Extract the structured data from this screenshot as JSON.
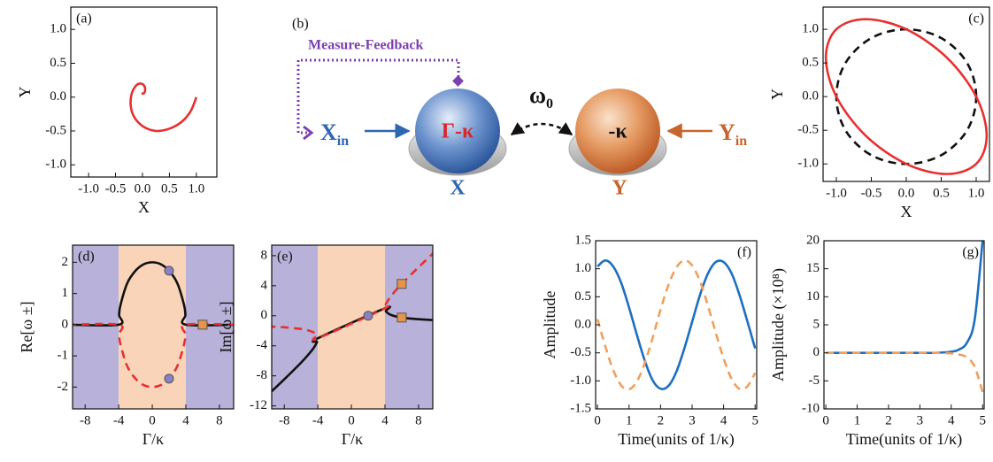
{
  "chart_data": [
    {
      "type": "line",
      "label": "(a)",
      "label_corner": "left",
      "x_label": "X",
      "y_label": "Y",
      "xlim": [
        -1.33,
        1.38
      ],
      "ylim": [
        -1.18,
        1.33
      ],
      "xticks": [
        {
          "value": -1,
          "label": "-1.0"
        },
        -0.5,
        {
          "value": 0,
          "label": "0.0"
        },
        0.5,
        {
          "value": 1,
          "label": "1.0"
        }
      ],
      "yticks": [
        {
          "value": -1,
          "label": "-1.0"
        },
        -0.5,
        {
          "value": 0,
          "label": "0.0"
        },
        0.5,
        {
          "value": 1,
          "label": "1.0"
        }
      ],
      "series": [
        {
          "color": "#e8302f",
          "style": "solid",
          "closed": false,
          "x": [
            1,
            0.9,
            0.75,
            0.55,
            0.3,
            0.1,
            -0.07,
            -0.18,
            -0.22,
            -0.2,
            -0.13,
            -0.05,
            0.02,
            0.05,
            0.03,
            -0.02
          ],
          "values": [
            0,
            -0.2,
            -0.35,
            -0.45,
            -0.5,
            -0.47,
            -0.38,
            -0.25,
            -0.1,
            0.05,
            0.16,
            0.2,
            0.18,
            0.12,
            0.06,
            0.05
          ]
        }
      ]
    },
    {
      "type": "line",
      "label": "(c)",
      "label_corner": "right",
      "x_label": "X",
      "y_label": "Y",
      "xlim": [
        -1.19,
        1.19
      ],
      "ylim": [
        -1.26,
        1.33
      ],
      "xticks": [
        {
          "value": -1,
          "label": "-1.0"
        },
        -0.5,
        {
          "value": 0,
          "label": "0.0"
        },
        0.5,
        {
          "value": 1,
          "label": "1.0"
        }
      ],
      "yticks": [
        {
          "value": -1,
          "label": "-1.0"
        },
        -0.5,
        {
          "value": 0,
          "label": "0.0"
        },
        0.5,
        {
          "value": 1,
          "label": "1.0"
        }
      ],
      "series": [
        {
          "color": "#111111",
          "style": "dashed",
          "closed": true,
          "x": [
            1,
            0.87,
            0.5,
            0,
            -0.5,
            -0.87,
            -1,
            -0.87,
            -0.5,
            0,
            0.5,
            0.87
          ],
          "values": [
            0,
            0.5,
            0.87,
            1,
            0.87,
            0.5,
            0,
            -0.5,
            -0.87,
            -1,
            -0.87,
            -0.5
          ]
        },
        {
          "color": "#e8302f",
          "style": "solid",
          "closed": true,
          "x": [
            1.15,
            1,
            0.58,
            0,
            -0.58,
            -1,
            -1.15,
            -1,
            -0.58,
            0,
            0.58,
            1
          ],
          "values": [
            -0.58,
            -1,
            -1.15,
            -1,
            -0.58,
            0,
            0.58,
            1,
            1.15,
            1,
            0.58,
            0
          ]
        }
      ]
    },
    {
      "type": "line",
      "label": "(d)",
      "label_corner": "left",
      "x_label": "Γ/κ",
      "y_label": "Re[ω ±]",
      "xlim": [
        -9.5,
        9.7
      ],
      "ylim": [
        -2.7,
        2.55
      ],
      "xticks": [
        -8,
        -4,
        0,
        4,
        8
      ],
      "yticks": [
        -2,
        -1,
        0,
        1,
        2
      ],
      "regions": [
        {
          "from": -10,
          "to": -4,
          "color": "#b8b1d9"
        },
        {
          "from": -4,
          "to": 4,
          "color": "#f9d4b8"
        },
        {
          "from": 4,
          "to": 10,
          "color": "#b8b1d9"
        }
      ],
      "series": [
        {
          "color": "#111111",
          "style": "solid",
          "closed": false,
          "x": [
            -10,
            -4,
            -3.95,
            -3.8,
            -3,
            -2,
            -1,
            0,
            1,
            2,
            3,
            3.8,
            3.95,
            4,
            10
          ],
          "values": [
            0,
            0,
            0.31,
            0.62,
            1.32,
            1.73,
            1.94,
            2,
            1.94,
            1.73,
            1.32,
            0.62,
            0.31,
            0,
            0
          ]
        },
        {
          "color": "#e8302f",
          "style": "dashed",
          "closed": false,
          "x": [
            -10,
            -4,
            -3.95,
            -3.8,
            -3,
            -2,
            -1,
            0,
            1,
            2,
            3,
            3.8,
            3.95,
            4,
            10
          ],
          "values": [
            0,
            0,
            -0.31,
            -0.62,
            -1.32,
            -1.73,
            -1.94,
            -2,
            -1.94,
            -1.73,
            -1.32,
            -0.62,
            -0.31,
            0,
            0
          ]
        }
      ],
      "markers": [
        {
          "x": 2,
          "y": 1.73,
          "shape": "circle",
          "color": "#8c80c4"
        },
        {
          "x": 2,
          "y": -1.73,
          "shape": "circle",
          "color": "#8c80c4"
        },
        {
          "x": 6,
          "y": 0,
          "shape": "square",
          "color": "#e8934a"
        }
      ]
    },
    {
      "type": "line",
      "label": "(e)",
      "label_corner": "left",
      "x_label": "Γ/κ",
      "y_label": "Im[ω ±]",
      "xlim": [
        -9.5,
        9.7
      ],
      "ylim": [
        -12.4,
        9.4
      ],
      "xticks": [
        -8,
        -4,
        0,
        4,
        8
      ],
      "yticks": [
        -12,
        -8,
        -4,
        0,
        4,
        8
      ],
      "regions": [
        {
          "from": -10,
          "to": -4,
          "color": "#b8b1d9"
        },
        {
          "from": -4,
          "to": 4,
          "color": "#f9d4b8"
        },
        {
          "from": 4,
          "to": 10,
          "color": "#b8b1d9"
        }
      ],
      "series": [
        {
          "color": "#111111",
          "style": "solid",
          "closed": false,
          "x": [
            -10,
            -8,
            -6,
            -5,
            -4.5,
            -4.1,
            -4,
            4,
            4.1,
            4.5,
            5,
            6,
            8,
            10
          ],
          "values": [
            -10.58,
            -8.46,
            -6.24,
            -5,
            -4.28,
            -3.5,
            -3,
            1,
            0.6,
            0.22,
            0,
            -0.24,
            -0.46,
            -0.58
          ]
        },
        {
          "color": "#e8302f",
          "style": "dashed",
          "closed": false,
          "x": [
            -10,
            -8,
            -6,
            -5,
            -4.5,
            -4.1,
            -4,
            4,
            4.1,
            4.5,
            5,
            6,
            8,
            10
          ],
          "values": [
            -1.42,
            -1.54,
            -1.76,
            -2,
            -2.22,
            -2.6,
            -3,
            1,
            1.5,
            2.28,
            3,
            4.24,
            6.46,
            8.58
          ]
        }
      ],
      "markers": [
        {
          "x": 2,
          "y": 0,
          "shape": "circle",
          "color": "#8c80c4"
        },
        {
          "x": 6,
          "y": 4.24,
          "shape": "square",
          "color": "#e8934a"
        },
        {
          "x": 6,
          "y": -0.24,
          "shape": "square",
          "color": "#e8934a"
        }
      ]
    },
    {
      "type": "line",
      "label": "(f)",
      "label_corner": "right",
      "x_label": "Time(units of 1/κ)",
      "y_label": "Amplitude",
      "xlim": [
        -0.06,
        5.05
      ],
      "ylim": [
        -1.5,
        1.5
      ],
      "xticks": [
        0,
        1,
        2,
        3,
        4,
        5
      ],
      "yticks": [
        -1.5,
        {
          "value": -1,
          "label": "-1.0"
        },
        -0.5,
        {
          "value": 0,
          "label": "0.0"
        },
        0.5,
        {
          "value": 1,
          "label": "1.0"
        },
        1.5
      ],
      "series": [
        {
          "color": "#1f6fc0",
          "style": "solid",
          "closed": false,
          "x": [
            0,
            0.25,
            0.5,
            0.75,
            1,
            1.25,
            1.5,
            1.75,
            2,
            2.25,
            2.5,
            2.75,
            3,
            3.25,
            3.5,
            3.75,
            4,
            4.25,
            4.5,
            4.75,
            5
          ],
          "values": [
            1.04,
            1.15,
            1.04,
            0.75,
            0.31,
            -0.18,
            -0.64,
            -0.99,
            -1.14,
            -1.09,
            -0.84,
            -0.43,
            0.05,
            0.53,
            0.91,
            1.12,
            1.12,
            0.92,
            0.54,
            0.07,
            -0.42
          ]
        },
        {
          "color": "#f0a05a",
          "style": "dashed",
          "closed": false,
          "x": [
            0,
            0.25,
            0.5,
            0.75,
            1,
            1.25,
            1.5,
            1.75,
            2,
            2.25,
            2.5,
            2.75,
            3,
            3.25,
            3.5,
            3.75,
            4,
            4.25,
            4.5,
            4.75,
            5
          ],
          "values": [
            0.1,
            -0.39,
            -0.81,
            -1.08,
            -1.15,
            -1.01,
            -0.68,
            -0.23,
            0.27,
            0.71,
            1.02,
            1.15,
            1.06,
            0.78,
            0.35,
            -0.14,
            -0.6,
            -0.96,
            -1.14,
            -1.1,
            -0.86
          ]
        }
      ]
    },
    {
      "type": "line",
      "label": "(g)",
      "label_corner": "right",
      "x_label": "Time(units of 1/κ)",
      "y_label": "Amplitude (×10⁸)",
      "xlim": [
        -0.06,
        5.05
      ],
      "ylim": [
        -10,
        20
      ],
      "xticks": [
        0,
        1,
        2,
        3,
        4,
        5
      ],
      "yticks": [
        -10,
        -5,
        0,
        5,
        10,
        15,
        20
      ],
      "series": [
        {
          "color": "#1f6fc0",
          "style": "solid",
          "closed": false,
          "x": [
            0,
            0.5,
            1,
            1.5,
            2,
            2.5,
            3,
            3.5,
            4,
            4.25,
            4.5,
            4.75,
            5
          ],
          "values": [
            0,
            0,
            0,
            0,
            0,
            0,
            0,
            0,
            0.2,
            0.6,
            1.8,
            6,
            20
          ]
        },
        {
          "color": "#f0a05a",
          "style": "dashed",
          "closed": false,
          "x": [
            0,
            0.5,
            1,
            1.5,
            2,
            2.5,
            3,
            3.5,
            4,
            4.25,
            4.5,
            4.75,
            5
          ],
          "values": [
            0,
            0,
            0,
            0,
            0,
            0,
            0,
            0,
            -0.1,
            -0.3,
            -0.8,
            -2.5,
            -7
          ]
        }
      ]
    }
  ],
  "diagram": {
    "label": "(b)",
    "feedback": "Measure-Feedback",
    "input_x": {
      "base": "X",
      "sub": "in"
    },
    "mode_x": "Γ-κ",
    "name_x": "X",
    "coupling": {
      "base": "ω",
      "sub": "0"
    },
    "mode_y": "-κ",
    "name_y": "Y",
    "input_y": {
      "base": "Y",
      "sub": "in"
    }
  }
}
